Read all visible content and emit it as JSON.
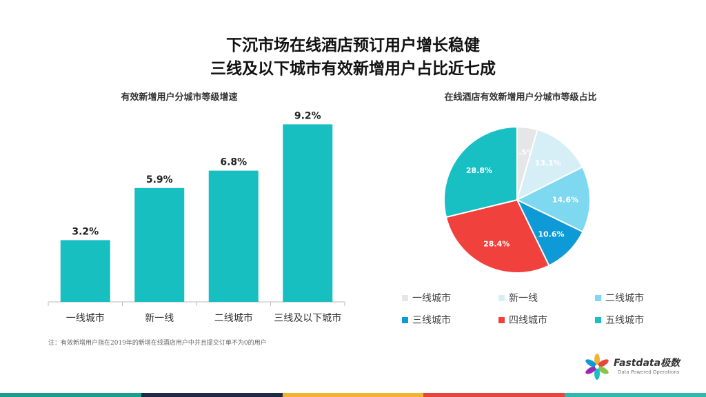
{
  "title_line1": "下沉市场在线酒店预订用户增长稳健",
  "title_line2": "三线及以下城市有效新增用户占比近七成",
  "footnote": "注：有效新增用户指在2019年的新增在线酒店用户中并且提交订单不为0的用户",
  "logo": {
    "name": "Fastdata极数",
    "tagline": "Data Powered Operations"
  },
  "colors": {
    "bar": "#17bfc1",
    "footer": [
      "#1a9e8e",
      "#1f2a44",
      "#f2b233",
      "#e8453c",
      "#2eb8b0"
    ]
  },
  "chart_data": [
    {
      "type": "bar",
      "title": "有效新增用户分城市等级增速",
      "categories": [
        "一线城市",
        "新一线",
        "二线城市",
        "三线及以下城市"
      ],
      "values": [
        3.2,
        5.9,
        6.8,
        9.2
      ],
      "value_labels": [
        "3.2%",
        "5.9%",
        "6.8%",
        "9.2%"
      ],
      "ylim": [
        0,
        10
      ]
    },
    {
      "type": "pie",
      "title": "在线酒店有效新增用户分城市等级占比",
      "labels": [
        "一线城市",
        "新一线",
        "二线城市",
        "三线城市",
        "四线城市",
        "五线城市"
      ],
      "values": [
        4.5,
        13.1,
        14.6,
        10.6,
        28.4,
        28.8
      ],
      "value_labels": [
        "4.5%",
        "13.1%",
        "14.6%",
        "10.6%",
        "28.4%",
        "28.8%"
      ],
      "colors": [
        "#e6e6e6",
        "#d6eef5",
        "#7dd8f0",
        "#0e9ad6",
        "#f0413c",
        "#18bfc3"
      ],
      "legend_position": "bottom"
    }
  ]
}
